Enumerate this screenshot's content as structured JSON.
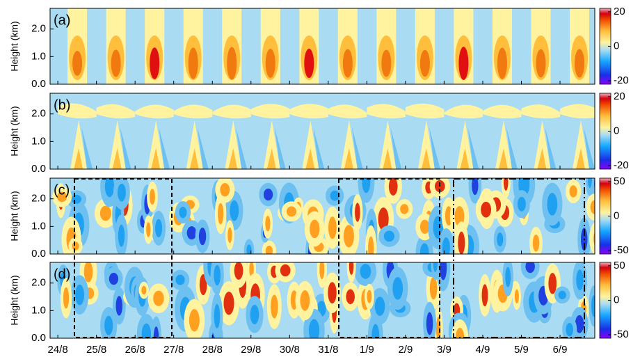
{
  "chart_data": {
    "type": "contour-panels",
    "xlim": [
      -0.2,
      13.9
    ],
    "xticks": [
      {
        "value": 0,
        "label": "24/8"
      },
      {
        "value": 1,
        "label": "25/8"
      },
      {
        "value": 2,
        "label": "26/8"
      },
      {
        "value": 3,
        "label": "27/8"
      },
      {
        "value": 4,
        "label": "28/8"
      },
      {
        "value": 5,
        "label": "29/8"
      },
      {
        "value": 6,
        "label": "30/8"
      },
      {
        "value": 7,
        "label": "31/8"
      },
      {
        "value": 8,
        "label": "1/9"
      },
      {
        "value": 9,
        "label": "2/9"
      },
      {
        "value": 10,
        "label": "3/9"
      },
      {
        "value": 11,
        "label": "4/9"
      },
      {
        "value": 12,
        "label": "5/9"
      },
      {
        "value": 13,
        "label": "6/9"
      }
    ],
    "panels": [
      {
        "label": "(a)",
        "ylabel": "Height (km)",
        "ylim": [
          0,
          2.75
        ],
        "yticks": [
          {
            "value": 0,
            "label": "0.0"
          },
          {
            "value": 1,
            "label": "1.0"
          },
          {
            "value": 2,
            "label": "2.0"
          }
        ],
        "clim": [
          -22,
          22
        ],
        "cticks": [
          20,
          0,
          -20
        ]
      },
      {
        "label": "(b)",
        "ylabel": "Height (km)",
        "ylim": [
          0,
          2.75
        ],
        "yticks": [
          {
            "value": 0,
            "label": "0.0"
          },
          {
            "value": 1,
            "label": "1.0"
          },
          {
            "value": 2,
            "label": "2.0"
          }
        ],
        "clim": [
          -22,
          22
        ],
        "cticks": [
          20,
          0,
          -20
        ]
      },
      {
        "label": "(c)",
        "ylabel": "Height (km)",
        "ylim": [
          0,
          2.75
        ],
        "yticks": [
          {
            "value": 0,
            "label": "0.0"
          },
          {
            "value": 1,
            "label": "1.0"
          },
          {
            "value": 2,
            "label": "2.0"
          }
        ],
        "clim": [
          -55,
          55
        ],
        "cticks": [
          50,
          0,
          -50
        ]
      },
      {
        "label": "(d)",
        "ylabel": "Height (km)",
        "ylim": [
          0,
          2.75
        ],
        "yticks": [
          {
            "value": 0,
            "label": "0.0"
          },
          {
            "value": 1,
            "label": "1.0"
          },
          {
            "value": 2,
            "label": "2.0"
          }
        ],
        "clim": [
          -55,
          55
        ],
        "cticks": [
          50,
          0,
          -50
        ]
      }
    ]
  }
}
